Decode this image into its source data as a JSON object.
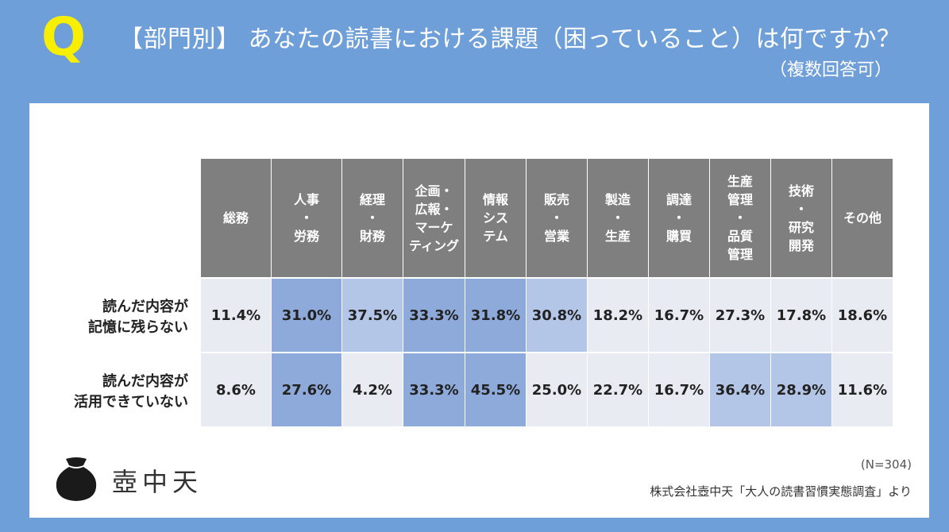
{
  "header": {
    "q_mark": "Q",
    "title": "【部門別】 あなたの読書における課題（困っていること）は何ですか？",
    "subtitle": "（複数回答可）"
  },
  "chart_data": {
    "type": "table",
    "categories": [
      "総務",
      "人事\n・\n労務",
      "経理\n・\n財務",
      "企画・\n広報・\nマーケ\nティング",
      "情報\nシス\nテム",
      "販売\n・\n営業",
      "製造\n・\n生産",
      "調達\n・\n購買",
      "生産\n管理\n・\n品質\n管理",
      "技術\n・\n研究\n開発",
      "その他"
    ],
    "series": [
      {
        "name": "読んだ内容が\n記憶に残らない",
        "values": [
          11.4,
          31.0,
          37.5,
          33.3,
          31.8,
          30.8,
          18.2,
          16.7,
          27.3,
          17.8,
          18.6
        ],
        "labels": [
          "11.4%",
          "31.0%",
          "37.5%",
          "33.3%",
          "31.8%",
          "30.8%",
          "18.2%",
          "16.7%",
          "27.3%",
          "17.8%",
          "18.6%"
        ]
      },
      {
        "name": "読んだ内容が\n活用できていない",
        "values": [
          8.6,
          27.6,
          4.2,
          33.3,
          45.5,
          25.0,
          22.7,
          16.7,
          36.4,
          28.9,
          11.6
        ],
        "labels": [
          "8.6%",
          "27.6%",
          "4.2%",
          "33.3%",
          "45.5%",
          "25.0%",
          "22.7%",
          "16.7%",
          "36.4%",
          "28.9%",
          "11.6%"
        ]
      }
    ],
    "highlight_colors": {
      "none": "#e9ebf3",
      "light": "#b4c6e7",
      "strong": "#8eaadb"
    },
    "highlight_levels": [
      [
        "none",
        "strong",
        "light",
        "strong",
        "strong",
        "light",
        "none",
        "none",
        "none",
        "none",
        "none"
      ],
      [
        "none",
        "strong",
        "none",
        "strong",
        "strong",
        "none",
        "none",
        "none",
        "light",
        "light",
        "none"
      ]
    ]
  },
  "footer": {
    "logo_text": "壺中天",
    "logo_icon": "jar-icon",
    "n_label": "(N=304)",
    "source": "株式会社壺中天「大人の読書習慣実態調査」より"
  },
  "colors": {
    "background": "#6f9fd8",
    "q_mark": "#f8ef00",
    "header_cell": "#7f7f7f"
  }
}
